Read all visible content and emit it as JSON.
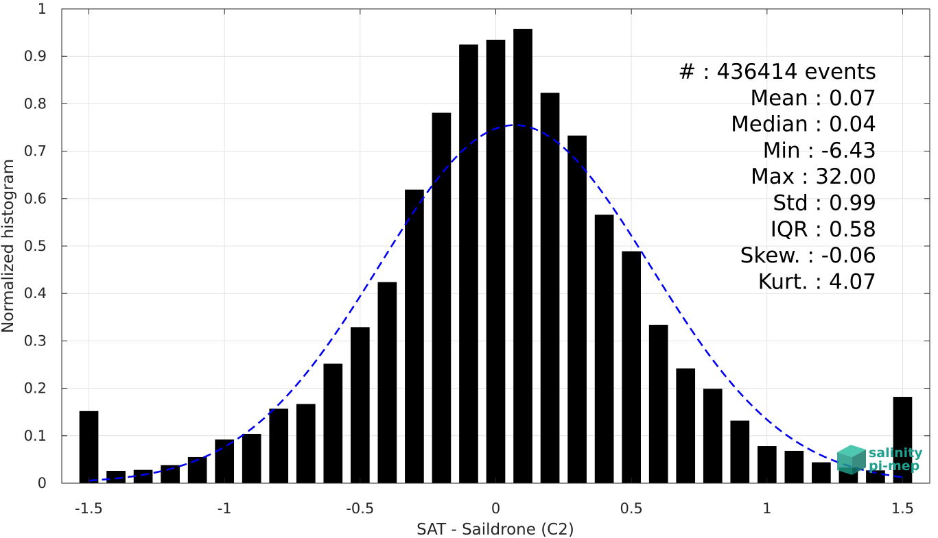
{
  "chart_data": {
    "type": "bar",
    "xlabel": "SAT - Saildrone (C2)",
    "ylabel": "Normalized histogram",
    "xlim": [
      -1.6,
      1.6
    ],
    "ylim": [
      0,
      1
    ],
    "x_ticks": [
      -1.5,
      -1,
      -0.5,
      0,
      0.5,
      1,
      1.5
    ],
    "x_tick_labels": [
      "-1.5",
      "-1",
      "-0.5",
      "0",
      "0.5",
      "1",
      "1.5"
    ],
    "y_ticks": [
      0,
      0.1,
      0.2,
      0.3,
      0.4,
      0.5,
      0.6,
      0.7,
      0.8,
      0.9,
      1
    ],
    "y_tick_labels": [
      "0",
      "0.1",
      "0.2",
      "0.3",
      "0.4",
      "0.5",
      "0.6",
      "0.7",
      "0.8",
      "0.9",
      "1"
    ],
    "grid": true,
    "bar_width": 0.07,
    "x": [
      -1.5,
      -1.4,
      -1.3,
      -1.2,
      -1.1,
      -1.0,
      -0.9,
      -0.8,
      -0.7,
      -0.6,
      -0.5,
      -0.4,
      -0.3,
      -0.2,
      -0.1,
      0.0,
      0.1,
      0.2,
      0.3,
      0.4,
      0.5,
      0.6,
      0.7,
      0.8,
      0.9,
      1.0,
      1.1,
      1.2,
      1.3,
      1.4,
      1.5
    ],
    "values": [
      0.152,
      0.026,
      0.028,
      0.038,
      0.055,
      0.092,
      0.104,
      0.157,
      0.167,
      0.252,
      0.329,
      0.424,
      0.619,
      0.781,
      0.925,
      0.935,
      0.958,
      0.823,
      0.733,
      0.566,
      0.489,
      0.334,
      0.242,
      0.199,
      0.132,
      0.078,
      0.068,
      0.044,
      0.033,
      0.027,
      0.182
    ],
    "bar_color": "#000000",
    "fit_curve": {
      "style": "dashed",
      "color": "#0000ee",
      "x_range": [
        -1.5,
        1.5
      ],
      "mean": 0.07,
      "std": 0.5,
      "peak": 0.755
    },
    "annotation_lines": [
      "#  : 436414 events",
      "Mean : 0.07",
      "Median : 0.04",
      "Min : -6.43",
      "Max : 32.00",
      "Std : 0.99",
      "IQR : 0.58",
      "Skew. : -0.06",
      "Kurt. : 4.07"
    ]
  },
  "logo": {
    "line1": "salinity",
    "line2": "pi-mep",
    "color": "#1fa08e"
  }
}
